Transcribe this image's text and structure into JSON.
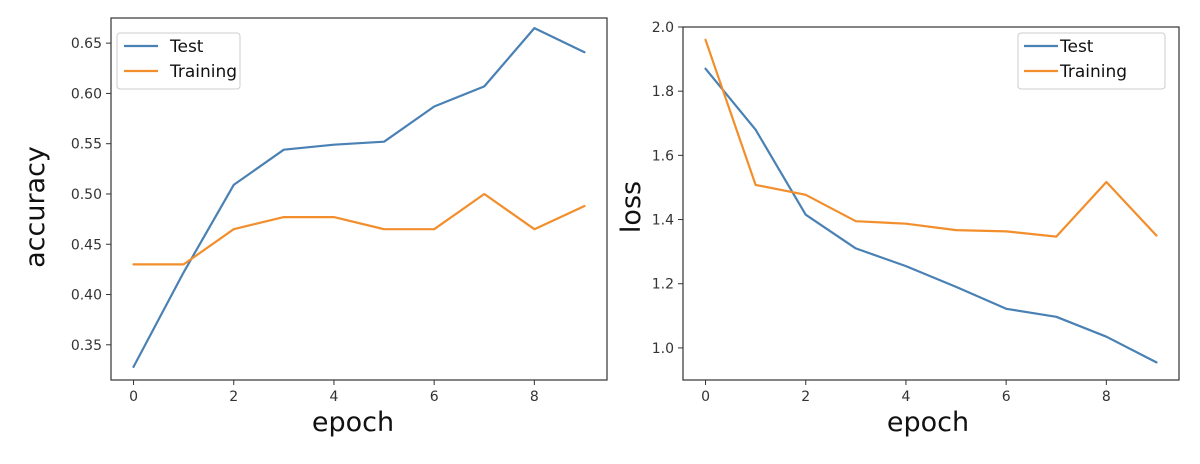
{
  "colors": {
    "test": "#4a81b4",
    "training": "#f28e2b"
  },
  "chart_data": [
    {
      "type": "line",
      "xlabel": "epoch",
      "ylabel": "accuracy",
      "x": [
        0,
        1,
        2,
        3,
        4,
        5,
        6,
        7,
        8,
        9
      ],
      "xlim": [
        -0.45,
        9.45
      ],
      "ylim": [
        0.315,
        0.675
      ],
      "xticks": [
        0,
        2,
        4,
        6,
        8
      ],
      "xtick_labels": [
        "0",
        "2",
        "4",
        "6",
        "8"
      ],
      "yticks": [
        0.35,
        0.4,
        0.45,
        0.5,
        0.55,
        0.6,
        0.65
      ],
      "ytick_labels": [
        "0.35",
        "0.40",
        "0.45",
        "0.50",
        "0.55",
        "0.60",
        "0.65"
      ],
      "legend_position": "top-left",
      "grid": false,
      "series": [
        {
          "name": "Test",
          "color": "#4a81b4",
          "values": [
            0.328,
            0.422,
            0.509,
            0.544,
            0.549,
            0.552,
            0.587,
            0.607,
            0.665,
            0.641
          ]
        },
        {
          "name": "Training",
          "color": "#f28e2b",
          "values": [
            0.43,
            0.43,
            0.465,
            0.477,
            0.477,
            0.465,
            0.465,
            0.5,
            0.465,
            0.488
          ]
        }
      ]
    },
    {
      "type": "line",
      "xlabel": "epoch",
      "ylabel": "loss",
      "x": [
        0,
        1,
        2,
        3,
        4,
        5,
        6,
        7,
        8,
        9
      ],
      "xlim": [
        -0.45,
        9.45
      ],
      "ylim": [
        0.9,
        2.0
      ],
      "xticks": [
        0,
        2,
        4,
        6,
        8
      ],
      "xtick_labels": [
        "0",
        "2",
        "4",
        "6",
        "8"
      ],
      "yticks": [
        1.0,
        1.2,
        1.4,
        1.6,
        1.8,
        2.0
      ],
      "ytick_labels": [
        "1.0",
        "1.2",
        "1.4",
        "1.6",
        "1.8",
        "2.0"
      ],
      "legend_position": "top-right",
      "grid": false,
      "series": [
        {
          "name": "Test",
          "color": "#4a81b4",
          "values": [
            1.87,
            1.68,
            1.415,
            1.31,
            1.255,
            1.19,
            1.122,
            1.097,
            1.035,
            0.955
          ]
        },
        {
          "name": "Training",
          "color": "#f28e2b",
          "values": [
            1.96,
            1.508,
            1.477,
            1.395,
            1.387,
            1.367,
            1.363,
            1.347,
            1.517,
            1.35
          ]
        }
      ]
    }
  ]
}
